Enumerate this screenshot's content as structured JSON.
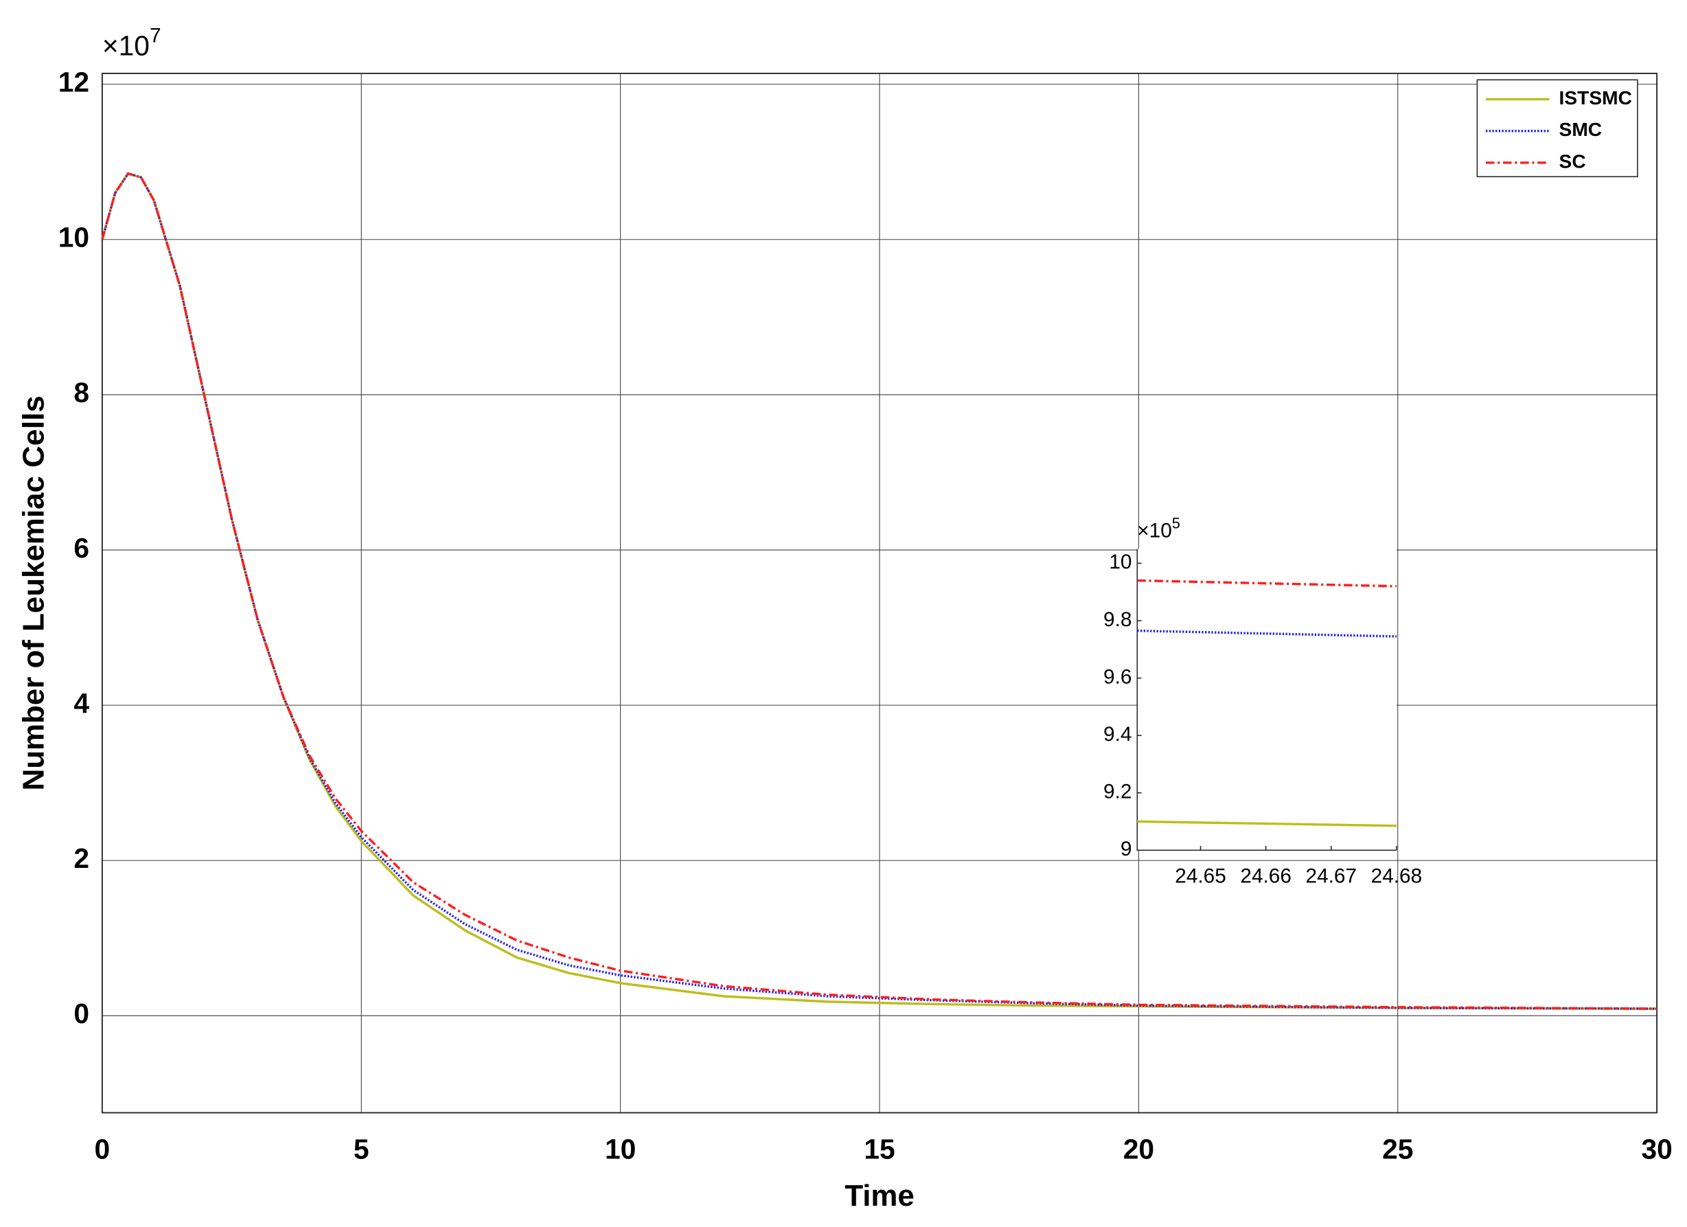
{
  "chart_data": [
    {
      "type": "line",
      "x_label": "Time",
      "y_label": "Number of Leukemiac Cells",
      "y_scale_label": {
        "base": "×10",
        "exponent": "7"
      },
      "x": [
        0,
        0.25,
        0.5,
        0.75,
        1,
        1.5,
        2,
        2.5,
        3,
        3.5,
        4,
        4.5,
        5,
        6,
        7,
        8,
        9,
        10,
        12,
        14,
        16,
        18,
        20,
        25,
        30
      ],
      "series": [
        {
          "name": "ISTSMC",
          "color": "#bdbd1d",
          "style": "solid",
          "values": [
            10,
            10.6,
            10.85,
            10.8,
            10.5,
            9.4,
            7.9,
            6.4,
            5.1,
            4.1,
            3.3,
            2.7,
            2.25,
            1.55,
            1.1,
            0.75,
            0.55,
            0.42,
            0.25,
            0.18,
            0.15,
            0.13,
            0.12,
            0.1,
            0.09
          ]
        },
        {
          "name": "SMC",
          "color": "#1f1fff",
          "style": "dotted",
          "values": [
            10,
            10.6,
            10.85,
            10.8,
            10.5,
            9.4,
            7.9,
            6.4,
            5.1,
            4.1,
            3.32,
            2.74,
            2.3,
            1.62,
            1.18,
            0.85,
            0.65,
            0.52,
            0.35,
            0.25,
            0.2,
            0.16,
            0.13,
            0.1,
            0.09
          ]
        },
        {
          "name": "SC",
          "color": "#ff1f1f",
          "style": "dashdot",
          "values": [
            10,
            10.6,
            10.85,
            10.8,
            10.5,
            9.4,
            7.9,
            6.4,
            5.1,
            4.1,
            3.35,
            2.8,
            2.38,
            1.72,
            1.3,
            0.97,
            0.75,
            0.58,
            0.38,
            0.27,
            0.21,
            0.17,
            0.14,
            0.11,
            0.09
          ]
        }
      ],
      "xlim": [
        0,
        30
      ],
      "xticks": [
        0,
        5,
        10,
        15,
        20,
        25,
        30
      ],
      "ylim": [
        -1.25,
        12.14
      ],
      "yticks": [
        0,
        2,
        4,
        6,
        8,
        10,
        12
      ],
      "grid": true,
      "legend": "top-right"
    },
    {
      "type": "line",
      "y_scale_label": {
        "base": "×10",
        "exponent": "5"
      },
      "x": [
        24.6403,
        24.68
      ],
      "series": [
        {
          "name": "ISTSMC",
          "color": "#bdbd1d",
          "style": "solid",
          "values": [
            9.1,
            9.085
          ]
        },
        {
          "name": "SMC",
          "color": "#1f1fff",
          "style": "dotted",
          "values": [
            9.765,
            9.745
          ]
        },
        {
          "name": "SC",
          "color": "#ff1f1f",
          "style": "dashdot",
          "values": [
            9.94,
            9.92
          ]
        }
      ],
      "xlim": [
        24.6403,
        24.68
      ],
      "xticks": [
        24.65,
        24.66,
        24.67,
        24.68
      ],
      "ylim": [
        9,
        10.05
      ],
      "yticks": [
        9,
        9.2,
        9.4,
        9.6,
        9.8,
        10
      ],
      "grid": false
    }
  ]
}
